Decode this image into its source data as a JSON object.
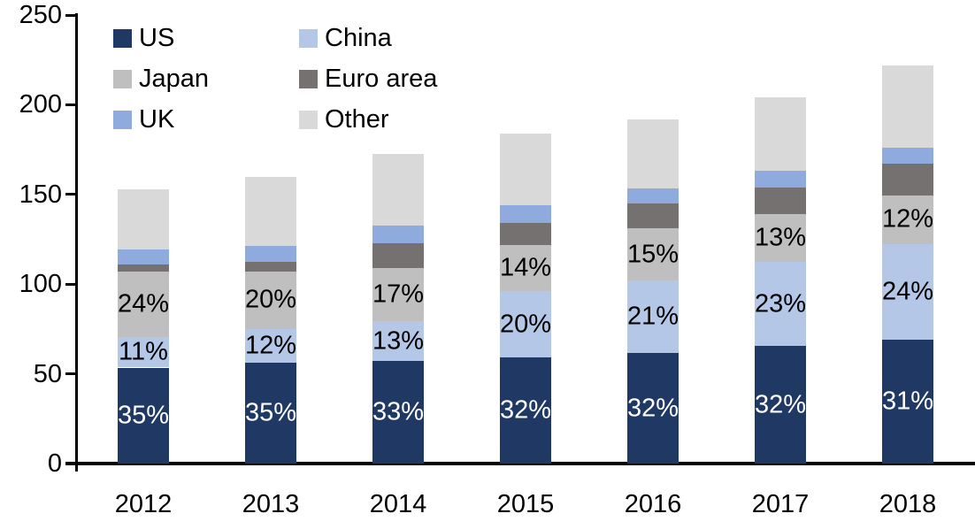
{
  "chart_data": {
    "type": "bar",
    "stacked": true,
    "title": "",
    "xlabel": "",
    "ylabel": "",
    "categories": [
      "2012",
      "2013",
      "2014",
      "2015",
      "2016",
      "2017",
      "2018"
    ],
    "series": [
      {
        "name": "US",
        "color": "#1F3864",
        "label_color": "#FFFFFF",
        "values": [
          53.5,
          56,
          57,
          59,
          61.5,
          65.5,
          69
        ],
        "labels": [
          "35%",
          "35%",
          "33%",
          "32%",
          "32%",
          "32%",
          "31%"
        ]
      },
      {
        "name": "China",
        "color": "#B4C7E7",
        "label_color": "#000000",
        "values": [
          17,
          19,
          22.5,
          37,
          40.5,
          47,
          53.5
        ],
        "labels": [
          "11%",
          "12%",
          "13%",
          "20%",
          "21%",
          "23%",
          "24%"
        ]
      },
      {
        "name": "Japan",
        "color": "#BFBFBF",
        "label_color": "#000000",
        "values": [
          36.5,
          32,
          29.5,
          26,
          29,
          26.5,
          27
        ],
        "labels": [
          "24%",
          "20%",
          "17%",
          "14%",
          "15%",
          "13%",
          "12%"
        ]
      },
      {
        "name": "Euro area",
        "color": "#767171",
        "label_color": "#000000",
        "values": [
          4,
          5.5,
          14,
          12,
          14,
          15,
          17.5
        ],
        "labels": null
      },
      {
        "name": "UK",
        "color": "#8FAADC",
        "label_color": "#000000",
        "values": [
          8.5,
          9,
          9.5,
          10,
          8.5,
          9,
          9
        ],
        "labels": null
      },
      {
        "name": "Other",
        "color": "#D9D9D9",
        "label_color": "#000000",
        "values": [
          33.5,
          38.5,
          40,
          40,
          38.5,
          41,
          46
        ],
        "labels": null
      }
    ],
    "totals": [
      153,
      160,
      172.5,
      184,
      192,
      204,
      222
    ],
    "ylim": [
      0,
      250
    ],
    "yticks": [
      0,
      50,
      100,
      150,
      200,
      250
    ],
    "grid": false,
    "legend_position": "top-left",
    "legend_columns": 2,
    "axis_color": "#000000",
    "background_color": "#FFFFFF"
  }
}
